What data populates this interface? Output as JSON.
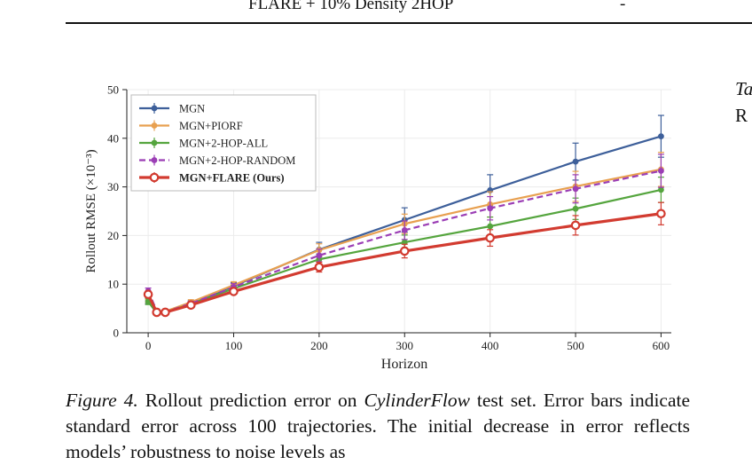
{
  "page": {
    "top_row_label": "FLARE + 10% Density 2HOP",
    "top_row_value": "-",
    "side_text_line1": "Ta",
    "side_text_line2": "R"
  },
  "figure": {
    "caption_label": "Figure 4.",
    "caption_text_1": "Rollout prediction error on",
    "caption_dataset": "CylinderFlow",
    "caption_text_2": "test set. Error bars indicate standard error across 100 trajectories. The initial decrease in error reflects models’ robustness to noise levels as"
  },
  "chart_data": {
    "type": "line",
    "xlabel": "Horizon",
    "ylabel": "Rollout RMSE (×10⁻³)",
    "xlim": [
      -25,
      612
    ],
    "ylim": [
      0,
      50
    ],
    "xticks": [
      0,
      100,
      200,
      300,
      400,
      500,
      600
    ],
    "yticks": [
      0,
      10,
      20,
      30,
      40,
      50
    ],
    "grid": true,
    "legend_position": "top-left",
    "series": [
      {
        "name": "MGN",
        "color": "#3d5f9a",
        "dashed": false,
        "bold": false,
        "hollow": false,
        "x": [
          0,
          10,
          20,
          50,
          100,
          200,
          300,
          400,
          500,
          600
        ],
        "y": [
          6.6,
          4.4,
          4.3,
          6.1,
          9.6,
          17.1,
          23.2,
          29.3,
          35.2,
          40.4
        ],
        "err": [
          0.6,
          0.4,
          0.4,
          0.5,
          0.7,
          1.5,
          2.5,
          3.2,
          3.8,
          4.3
        ]
      },
      {
        "name": "MGN+PIORF",
        "color": "#e8a050",
        "dashed": false,
        "bold": false,
        "hollow": false,
        "x": [
          0,
          10,
          20,
          50,
          100,
          200,
          300,
          400,
          500,
          600
        ],
        "y": [
          6.8,
          4.3,
          4.4,
          6.3,
          9.8,
          17.0,
          22.4,
          26.4,
          30.1,
          33.6
        ],
        "err": [
          0.6,
          0.4,
          0.4,
          0.5,
          0.7,
          1.3,
          2.0,
          2.6,
          3.1,
          3.5
        ]
      },
      {
        "name": "MGN+2-HOP-ALL",
        "color": "#55a53e",
        "dashed": false,
        "bold": false,
        "hollow": false,
        "x": [
          0,
          10,
          20,
          50,
          100,
          200,
          300,
          400,
          500,
          600
        ],
        "y": [
          6.4,
          4.1,
          4.2,
          5.9,
          9.1,
          15.1,
          18.6,
          21.9,
          25.5,
          29.4
        ],
        "err": [
          0.6,
          0.4,
          0.4,
          0.5,
          0.6,
          1.1,
          1.5,
          1.9,
          2.2,
          2.6
        ]
      },
      {
        "name": "MGN+2-HOP-RANDOM",
        "color": "#9b3eb5",
        "dashed": true,
        "bold": false,
        "hollow": false,
        "x": [
          0,
          10,
          20,
          50,
          100,
          200,
          300,
          400,
          500,
          600
        ],
        "y": [
          8.6,
          4.5,
          4.3,
          6.0,
          9.4,
          15.9,
          21.1,
          25.6,
          29.6,
          33.3
        ],
        "err": [
          0.6,
          0.4,
          0.4,
          0.5,
          0.7,
          1.3,
          1.9,
          2.4,
          2.9,
          3.4
        ]
      },
      {
        "name": "MGN+FLARE (Ours)",
        "color": "#d23b30",
        "dashed": false,
        "bold": true,
        "hollow": true,
        "x": [
          0,
          10,
          20,
          50,
          100,
          200,
          300,
          400,
          500,
          600
        ],
        "y": [
          7.9,
          4.2,
          4.2,
          5.7,
          8.5,
          13.5,
          16.8,
          19.5,
          22.1,
          24.5
        ],
        "err": [
          0.6,
          0.4,
          0.4,
          0.4,
          0.6,
          1.0,
          1.4,
          1.7,
          2.0,
          2.3
        ]
      }
    ]
  }
}
